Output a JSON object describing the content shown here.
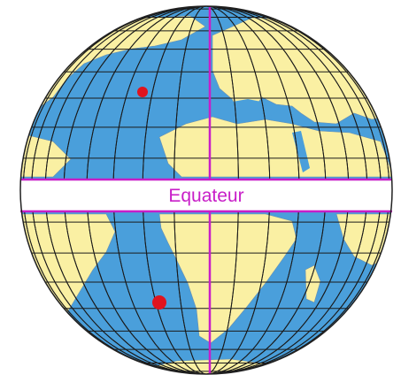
{
  "map": {
    "equator_label": "Equateur",
    "colors": {
      "ocean": "#4a9fdb",
      "land": "#faf0a3",
      "graticule": "#1a1a1a",
      "equator_band": "#ffffff",
      "guide_lines": "#c81ec8",
      "equator_text": "#c81ec8",
      "marker": "#e0141e",
      "rim": "#222222"
    },
    "markers": [
      {
        "name": "northern-hemisphere-point"
      },
      {
        "name": "southern-hemisphere-point"
      }
    ]
  }
}
